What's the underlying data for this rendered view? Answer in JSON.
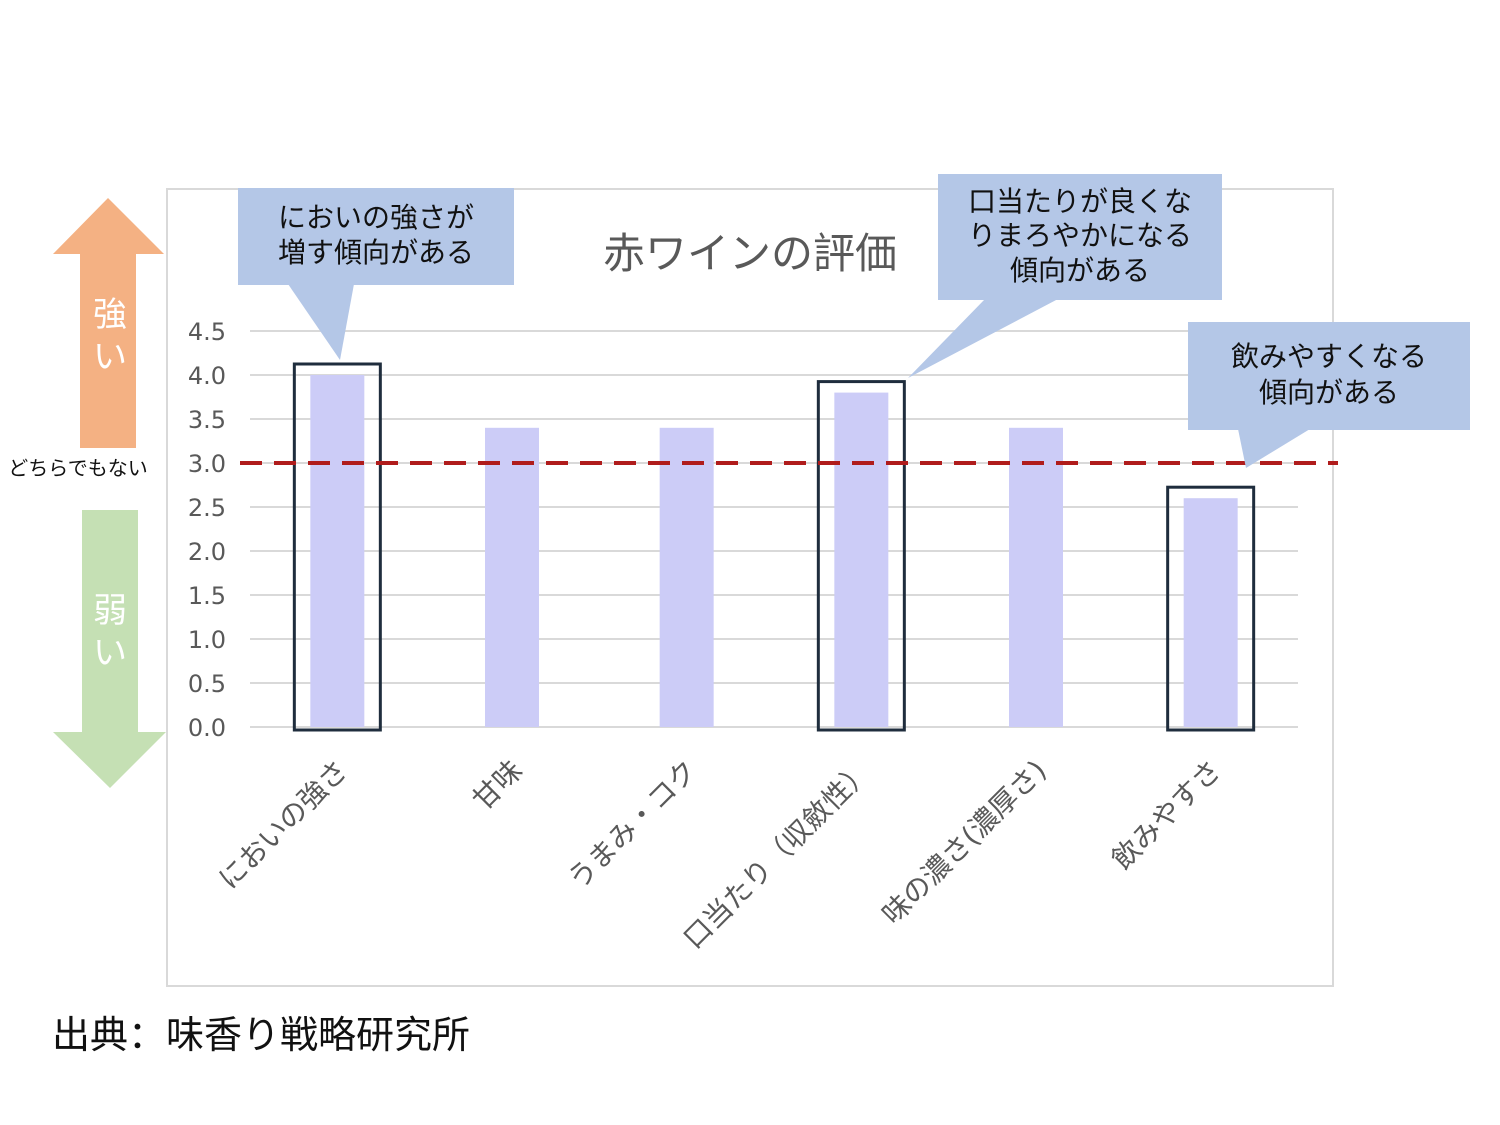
{
  "chart_data": {
    "type": "bar",
    "title": "赤ワインの評価",
    "categories": [
      "においの強さ",
      "甘味",
      "うまみ・コク",
      "口当たり（収斂性）",
      "味の濃さ(濃厚さ)",
      "飲みやすさ"
    ],
    "values": [
      4.0,
      3.4,
      3.4,
      3.8,
      3.4,
      2.6
    ],
    "ylim": [
      0,
      4.5
    ],
    "yticks": [
      "0.0",
      "0.5",
      "1.0",
      "1.5",
      "2.0",
      "2.5",
      "3.0",
      "3.5",
      "4.0",
      "4.5"
    ],
    "reference_line": {
      "value": 3.0,
      "color": "#b01c1c"
    },
    "bar_color": "#ccccf7",
    "grid": true,
    "highlighted_categories": [
      "においの強さ",
      "口当たり（収斂性）",
      "飲みやすさ"
    ]
  },
  "scale": {
    "strong": "強い",
    "neutral": "どちらでもない",
    "weak": "弱い",
    "strong_color": "#f4b183",
    "weak_color": "#c5e0b4"
  },
  "callouts": {
    "smell": [
      "においの強さが",
      "増す傾向がある"
    ],
    "mouthfeel": [
      "口当たりが良くな",
      "りまろやかになる",
      "傾向がある"
    ],
    "drinkability": [
      "飲みやすくなる",
      "傾向がある"
    ],
    "color": "#b4c7e7"
  },
  "source": "出典：味香り戦略研究所"
}
